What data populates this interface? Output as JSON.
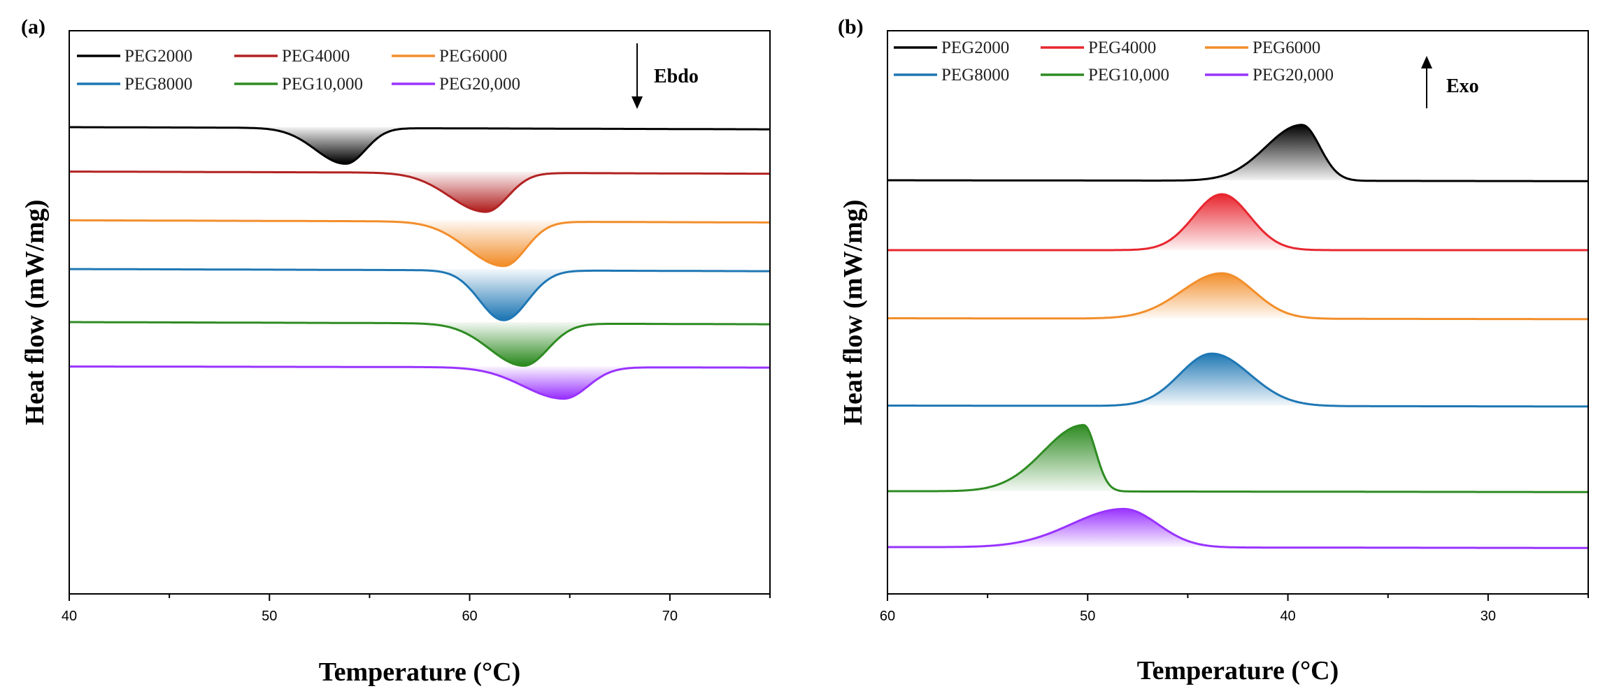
{
  "chart_data": [
    {
      "id": "a",
      "type": "line",
      "panel_label": "(a)",
      "title": "",
      "xlabel": "Temperature (°C)",
      "ylabel": "Heat flow (mW/mg)",
      "xlim": [
        40,
        75
      ],
      "x_reversed": false,
      "xticks": [
        40,
        50,
        60,
        70
      ],
      "tick_labels": [
        "40",
        "50",
        "60",
        "70"
      ],
      "y_ticks": false,
      "note": {
        "label": "Ebdo",
        "arrow": "down"
      },
      "legend": [
        "PEG2000",
        "PEG4000",
        "PEG6000",
        "PEG8000",
        "PEG10,000",
        "PEG20,000"
      ],
      "series": [
        {
          "name": "PEG2000",
          "color": "#000000",
          "baseline": 0.0,
          "tilt": 0.1,
          "peak_temp": 53.8,
          "peak_height": 1.65,
          "width_low": 1.5,
          "width_high": 1.0,
          "step": 0.0
        },
        {
          "name": "PEG4000",
          "color": "#b22222",
          "baseline": -2.05,
          "tilt": 0.1,
          "peak_temp": 60.8,
          "peak_height": 1.8,
          "width_low": 1.8,
          "width_high": 1.1,
          "step": 0.0
        },
        {
          "name": "PEG6000",
          "color": "#f28e2b",
          "baseline": -4.3,
          "tilt": 0.1,
          "peak_temp": 61.7,
          "peak_height": 2.05,
          "width_low": 1.8,
          "width_high": 1.1,
          "step": 0.0
        },
        {
          "name": "PEG8000",
          "color": "#1f77b4",
          "baseline": -6.55,
          "tilt": 0.1,
          "peak_temp": 61.7,
          "peak_height": 2.3,
          "width_low": 1.2,
          "width_high": 1.2,
          "step": 0.0
        },
        {
          "name": "PEG10,000",
          "color": "#2e8b22",
          "baseline": -9.0,
          "tilt": 0.1,
          "peak_temp": 62.7,
          "peak_height": 1.95,
          "width_low": 1.7,
          "width_high": 1.2,
          "step": 0.0
        },
        {
          "name": "PEG20,000",
          "color": "#9933ff",
          "baseline": -11.05,
          "tilt": 0.05,
          "peak_temp": 64.7,
          "peak_height": 1.45,
          "width_low": 2.0,
          "width_high": 1.2,
          "step": 0.0
        }
      ]
    },
    {
      "id": "b",
      "type": "line",
      "panel_label": "(b)",
      "title": "",
      "xlabel": "Temperature (°C)",
      "ylabel": "Heat flow (mW/mg)",
      "xlim": [
        60,
        25
      ],
      "x_reversed": true,
      "xticks": [
        60,
        50,
        40,
        30
      ],
      "tick_labels": [
        "60",
        "50",
        "40",
        "30"
      ],
      "y_ticks": false,
      "note": {
        "label": "Exo",
        "arrow": "up"
      },
      "legend": [
        "PEG2000",
        "PEG4000",
        "PEG6000",
        "PEG8000",
        "PEG10,000",
        "PEG20,000"
      ],
      "series": [
        {
          "name": "PEG2000",
          "color": "#000000",
          "baseline": 0.0,
          "tilt": 0.05,
          "peak_temp": 39.3,
          "peak_height": 1.6,
          "width_low": 1.8,
          "width_high": 0.9,
          "step": 0.0
        },
        {
          "name": "PEG4000",
          "color": "#e8262f",
          "baseline": -2.0,
          "tilt": 0.0,
          "peak_temp": 43.3,
          "peak_height": 1.6,
          "width_low": 1.4,
          "width_high": 1.4,
          "step": 0.0
        },
        {
          "name": "PEG6000",
          "color": "#f28e2b",
          "baseline": -3.95,
          "tilt": 0.05,
          "peak_temp": 43.3,
          "peak_height": 1.3,
          "width_low": 2.0,
          "width_high": 1.6,
          "step": 0.0
        },
        {
          "name": "PEG8000",
          "color": "#1f77b4",
          "baseline": -6.45,
          "tilt": 0.05,
          "peak_temp": 43.8,
          "peak_height": 1.5,
          "width_low": 1.6,
          "width_high": 1.9,
          "step": 0.0
        },
        {
          "name": "PEG10,000",
          "color": "#2e8b22",
          "baseline": -8.9,
          "tilt": 0.05,
          "peak_temp": 50.2,
          "peak_height": 1.9,
          "width_low": 2.0,
          "width_high": 0.6,
          "step": 0.0
        },
        {
          "name": "PEG20,000",
          "color": "#9933ff",
          "baseline": -10.5,
          "tilt": 0.05,
          "peak_temp": 48.2,
          "peak_height": 1.1,
          "width_low": 2.6,
          "width_high": 1.7,
          "step": 0.0
        }
      ]
    }
  ]
}
